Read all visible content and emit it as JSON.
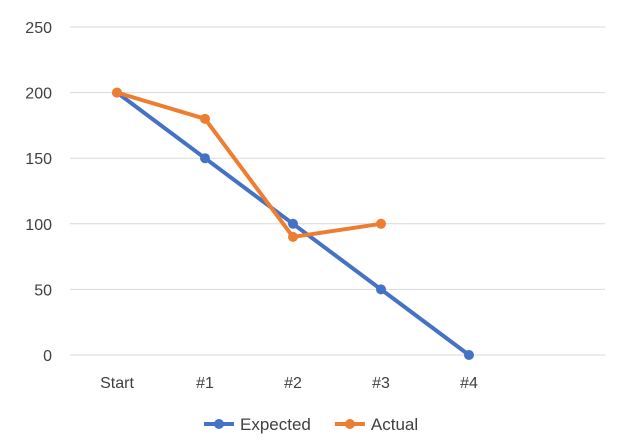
{
  "chart_data": {
    "type": "line",
    "categories": [
      "Start",
      "#1",
      "#2",
      "#3",
      "#4"
    ],
    "ylim": [
      0,
      250
    ],
    "yticks": [
      0,
      50,
      100,
      150,
      200,
      250
    ],
    "grid": true,
    "legend_position": "bottom",
    "series": [
      {
        "name": "Expected",
        "color": "#4472C4",
        "values": [
          200,
          150,
          100,
          50,
          0
        ]
      },
      {
        "name": "Actual",
        "color": "#ED7D31",
        "values": [
          200,
          180,
          90,
          100,
          null
        ]
      }
    ]
  }
}
